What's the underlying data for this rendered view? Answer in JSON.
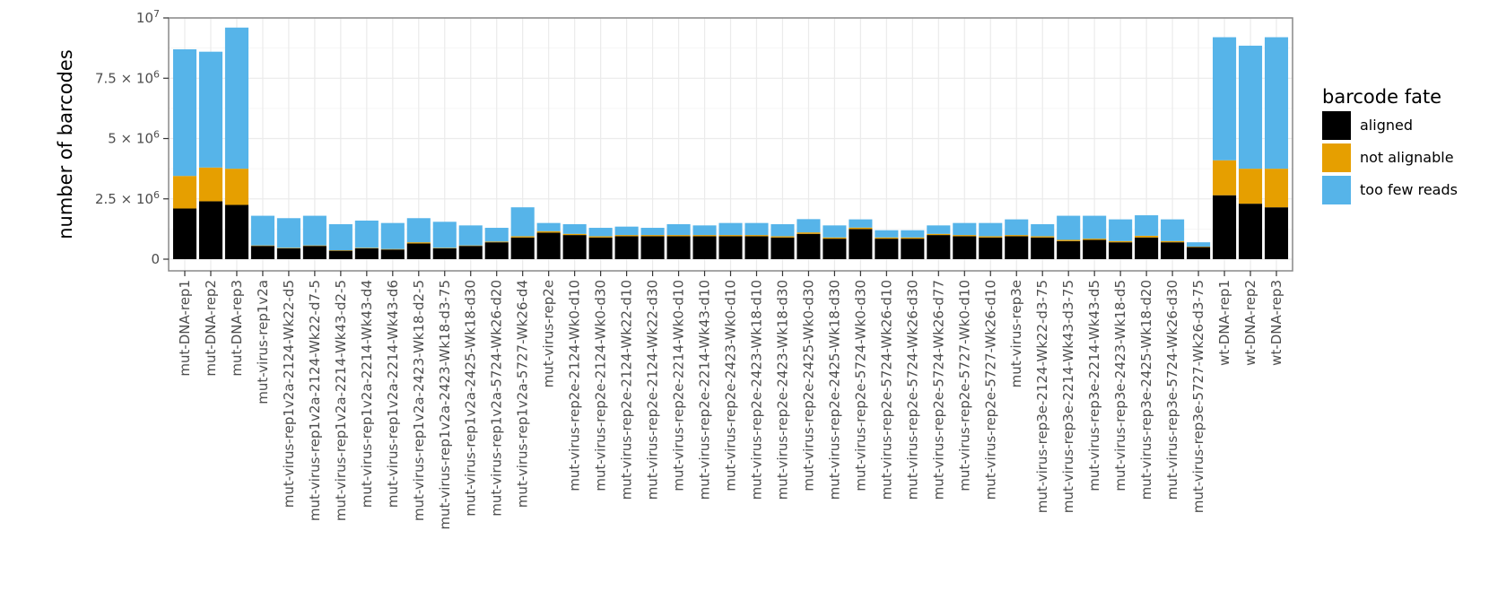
{
  "chart_data": {
    "type": "bar",
    "stacked": true,
    "title": "",
    "xlabel": "",
    "ylabel": "number of barcodes",
    "ylim": [
      0,
      10000000
    ],
    "y_ticks": [
      {
        "value": 0,
        "label": "0",
        "exp": ""
      },
      {
        "value": 2500000,
        "label": "2.5 × 10",
        "exp": "6"
      },
      {
        "value": 5000000,
        "label": "5 × 10",
        "exp": "6"
      },
      {
        "value": 7500000,
        "label": "7.5 × 10",
        "exp": "6"
      },
      {
        "value": 10000000,
        "label": "10",
        "exp": "7"
      }
    ],
    "grid": true,
    "legend": {
      "title": "barcode fate",
      "position": "right"
    },
    "categories": [
      "mut-DNA-rep1",
      "mut-DNA-rep2",
      "mut-DNA-rep3",
      "mut-virus-rep1v2a",
      "mut-virus-rep1v2a-2124-Wk22-d5",
      "mut-virus-rep1v2a-2124-Wk22-d7-5",
      "mut-virus-rep1v2a-2214-Wk43-d2-5",
      "mut-virus-rep1v2a-2214-Wk43-d4",
      "mut-virus-rep1v2a-2214-Wk43-d6",
      "mut-virus-rep1v2a-2423-Wk18-d2-5",
      "mut-virus-rep1v2a-2423-Wk18-d3-75",
      "mut-virus-rep1v2a-2425-Wk18-d30",
      "mut-virus-rep1v2a-5724-Wk26-d20",
      "mut-virus-rep1v2a-5727-Wk26-d4",
      "mut-virus-rep2e",
      "mut-virus-rep2e-2124-Wk0-d10",
      "mut-virus-rep2e-2124-Wk0-d30",
      "mut-virus-rep2e-2124-Wk22-d10",
      "mut-virus-rep2e-2124-Wk22-d30",
      "mut-virus-rep2e-2214-Wk0-d10",
      "mut-virus-rep2e-2214-Wk43-d10",
      "mut-virus-rep2e-2423-Wk0-d10",
      "mut-virus-rep2e-2423-Wk18-d10",
      "mut-virus-rep2e-2423-Wk18-d30",
      "mut-virus-rep2e-2425-Wk0-d30",
      "mut-virus-rep2e-2425-Wk18-d30",
      "mut-virus-rep2e-5724-Wk0-d30",
      "mut-virus-rep2e-5724-Wk26-d10",
      "mut-virus-rep2e-5724-Wk26-d30",
      "mut-virus-rep2e-5724-Wk26-d77",
      "mut-virus-rep2e-5727-Wk0-d10",
      "mut-virus-rep2e-5727-Wk26-d10",
      "mut-virus-rep3e",
      "mut-virus-rep3e-2124-Wk22-d3-75",
      "mut-virus-rep3e-2214-Wk43-d3-75",
      "mut-virus-rep3e-2214-Wk43-d5",
      "mut-virus-rep3e-2423-Wk18-d5",
      "mut-virus-rep3e-2425-Wk18-d20",
      "mut-virus-rep3e-5724-Wk26-d30",
      "mut-virus-rep3e-5727-Wk26-d3-75",
      "wt-DNA-rep1",
      "wt-DNA-rep2",
      "wt-DNA-rep3"
    ],
    "series": [
      {
        "name": "aligned",
        "color": "#000000",
        "values": [
          2100000,
          2400000,
          2250000,
          550000,
          450000,
          550000,
          350000,
          450000,
          400000,
          650000,
          450000,
          550000,
          700000,
          900000,
          1100000,
          1000000,
          900000,
          950000,
          950000,
          950000,
          950000,
          950000,
          950000,
          900000,
          1050000,
          850000,
          1250000,
          850000,
          850000,
          1000000,
          950000,
          900000,
          950000,
          900000,
          750000,
          800000,
          700000,
          900000,
          700000,
          500000,
          2650000,
          2300000,
          2150000
        ]
      },
      {
        "name": "not alignable",
        "color": "#E69F00",
        "values": [
          1350000,
          1400000,
          1500000,
          20000,
          20000,
          20000,
          20000,
          20000,
          20000,
          50000,
          20000,
          20000,
          30000,
          50000,
          60000,
          50000,
          50000,
          50000,
          50000,
          50000,
          50000,
          50000,
          50000,
          50000,
          60000,
          50000,
          60000,
          50000,
          50000,
          50000,
          50000,
          50000,
          50000,
          50000,
          50000,
          50000,
          50000,
          70000,
          50000,
          20000,
          1450000,
          1450000,
          1600000
        ]
      },
      {
        "name": "too few reads",
        "color": "#56B4E9",
        "values": [
          5250000,
          4800000,
          5850000,
          1230000,
          1230000,
          1230000,
          1080000,
          1130000,
          1080000,
          1000000,
          1080000,
          830000,
          570000,
          1200000,
          340000,
          400000,
          350000,
          350000,
          300000,
          450000,
          400000,
          500000,
          500000,
          500000,
          550000,
          500000,
          340000,
          300000,
          300000,
          350000,
          500000,
          550000,
          650000,
          500000,
          1000000,
          950000,
          900000,
          850000,
          900000,
          180000,
          5100000,
          5100000,
          5450000
        ]
      }
    ]
  }
}
